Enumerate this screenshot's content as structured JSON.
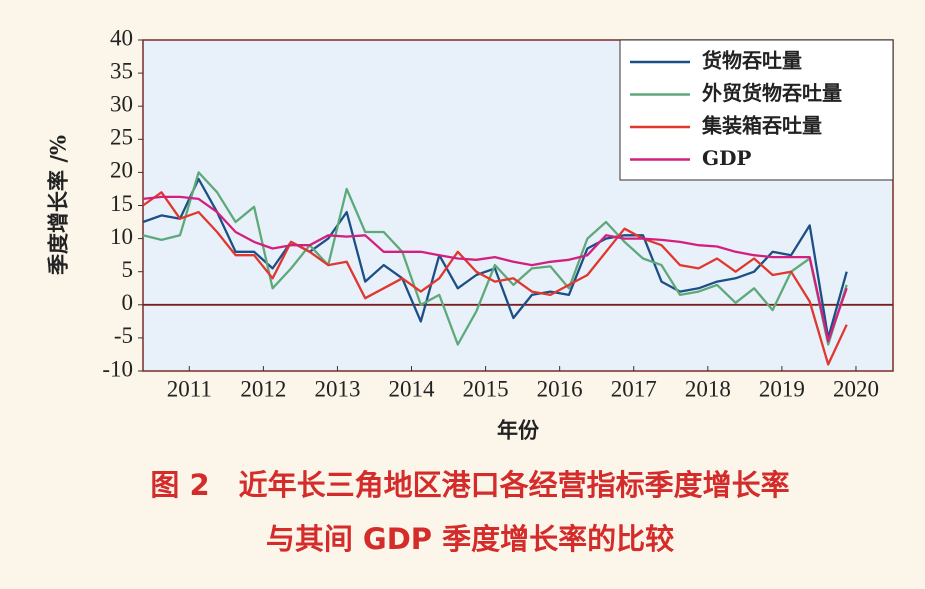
{
  "chart_data": {
    "type": "line",
    "caption": [
      "图 2　近年长三角地区港口各经营指标季度增长率",
      "与其间 GDP 季度增长率的比较"
    ],
    "ylabel": "季度增长率 /%",
    "xlabel": "年份",
    "x": [
      2010.875,
      2011.125,
      2011.375,
      2011.625,
      2011.875,
      2012.125,
      2012.375,
      2012.625,
      2012.875,
      2013.125,
      2013.375,
      2013.625,
      2013.875,
      2014.125,
      2014.375,
      2014.625,
      2014.875,
      2015.125,
      2015.375,
      2015.625,
      2015.875,
      2016.125,
      2016.375,
      2016.625,
      2016.875,
      2017.125,
      2017.375,
      2017.625,
      2017.875,
      2018.125,
      2018.375,
      2018.625,
      2018.875,
      2019.125,
      2019.375,
      2019.625,
      2019.875,
      2020.125,
      2020.375
    ],
    "xlim": [
      2010.875,
      2021.0
    ],
    "xticks": [
      {
        "value": 2011.5,
        "label": "2011"
      },
      {
        "value": 2012.5,
        "label": "2012"
      },
      {
        "value": 2013.5,
        "label": "2013"
      },
      {
        "value": 2014.5,
        "label": "2014"
      },
      {
        "value": 2015.5,
        "label": "2015"
      },
      {
        "value": 2016.5,
        "label": "2016"
      },
      {
        "value": 2017.5,
        "label": "2017"
      },
      {
        "value": 2018.5,
        "label": "2018"
      },
      {
        "value": 2019.5,
        "label": "2019"
      },
      {
        "value": 2020.5,
        "label": "2020"
      }
    ],
    "ylim": [
      -10,
      40
    ],
    "yticks": [
      -10,
      -5,
      0,
      5,
      10,
      15,
      20,
      25,
      30,
      35,
      40
    ],
    "legend": "upper right",
    "series": [
      {
        "name": "货物吞吐量",
        "color": "#1b4f86",
        "values": [
          12.5,
          13.5,
          13,
          19,
          14,
          8,
          8,
          5.5,
          9.5,
          8,
          10,
          14,
          3.5,
          6,
          4,
          -2.5,
          7.5,
          2.5,
          4.5,
          5.5,
          -2,
          1.5,
          2,
          1.5,
          8.5,
          10,
          10.5,
          10.5,
          3.5,
          2,
          2.5,
          3.5,
          4,
          5,
          8,
          7.5,
          12,
          -5,
          5
        ]
      },
      {
        "name": "外贸货物吞吐量",
        "color": "#5ea97a",
        "values": [
          10.5,
          9.8,
          10.5,
          20,
          17,
          12.5,
          14.8,
          2.5,
          5.5,
          9,
          6,
          17.5,
          11,
          11,
          8,
          0,
          1.5,
          -6,
          -1,
          6,
          3,
          5.5,
          5.8,
          2.5,
          10,
          12.5,
          9.5,
          7,
          6,
          1.5,
          2,
          3,
          0.3,
          2.5,
          -0.8,
          5,
          7,
          -6,
          3
        ]
      },
      {
        "name": "集装箱吞吐量",
        "color": "#e0372e",
        "values": [
          15,
          17,
          13,
          14,
          11,
          7.5,
          7.5,
          4,
          9.5,
          8,
          6,
          6.5,
          1,
          2.5,
          4,
          2,
          4,
          8,
          5,
          3.5,
          4,
          2,
          1.5,
          3,
          4.5,
          8,
          11.5,
          10,
          9,
          6,
          5.5,
          7,
          5,
          7,
          4.5,
          5,
          0.5,
          -9,
          -3
        ]
      },
      {
        "name": "GDP",
        "color": "#d3207f",
        "values": [
          16,
          16.3,
          16.3,
          16,
          14,
          11,
          9.5,
          8.5,
          9,
          9,
          10.5,
          10.3,
          10.5,
          8,
          8,
          8,
          7.5,
          7,
          6.8,
          7.2,
          6.5,
          6,
          6.5,
          6.8,
          7.5,
          10.5,
          10,
          10,
          9.8,
          9.5,
          9,
          8.8,
          8,
          7.5,
          7.2,
          7.2,
          7.2,
          -5.5,
          2.5
        ]
      }
    ]
  }
}
